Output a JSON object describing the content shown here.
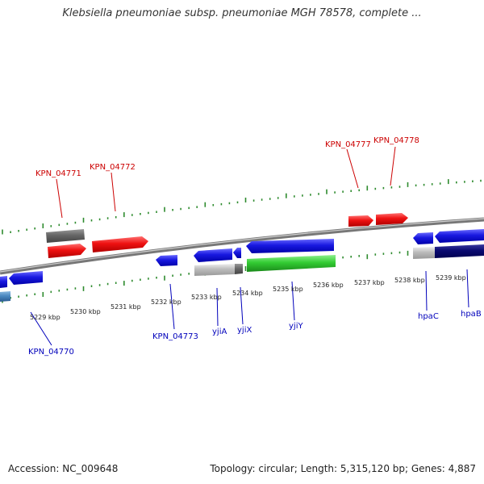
{
  "title": "Klebsiella pneumoniae subsp. pneumoniae MGH 78578, complete ...",
  "footer": {
    "accession": "Accession: NC_009648",
    "summary": "Topology: circular; Length: 5,315,120 bp; Genes: 4,887"
  },
  "colors": {
    "forward_gene": "#ee1111",
    "reverse_gene": "#1111dd",
    "forward_label": "#cc0000",
    "reverse_label": "#0000bb",
    "tick": "#2e8b2e",
    "backbone": "#888888"
  },
  "kbp_ticks": [
    "5229 kbp",
    "5230 kbp",
    "5231 kbp",
    "5232 kbp",
    "5233 kbp",
    "5234 kbp",
    "5235 kbp",
    "5236 kbp",
    "5237 kbp",
    "5238 kbp",
    "5239 kbp"
  ],
  "forward_labels": [
    "KPN_04771",
    "KPN_04772",
    "KPN_04777",
    "KPN_04778"
  ],
  "reverse_labels": [
    "KPN_04770",
    "KPN_04773",
    "yjiA",
    "yjiX",
    "yjiY",
    "hpaC",
    "hpaB"
  ]
}
